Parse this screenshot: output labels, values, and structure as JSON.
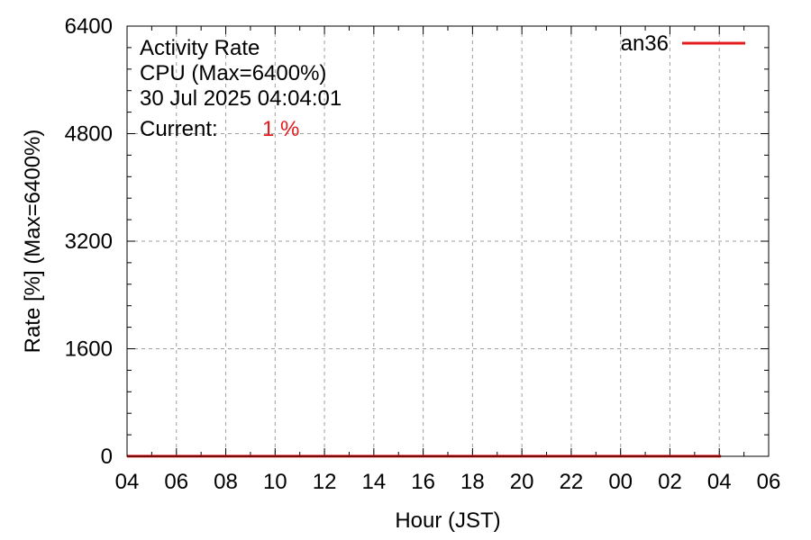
{
  "chart_data": {
    "type": "line",
    "title": "Activity Rate",
    "subtitle": "CPU (Max=6400%)",
    "timestamp": "30 Jul 2025 04:04:01",
    "current_label": "Current:",
    "current_value": "1 %",
    "xlabel": "Hour (JST)",
    "ylabel": "Rate [%]  (Max=6400%)",
    "x_ticks": [
      "04",
      "06",
      "08",
      "10",
      "12",
      "14",
      "16",
      "18",
      "20",
      "22",
      "00",
      "02",
      "04",
      "06"
    ],
    "y_ticks": [
      0,
      1600,
      3200,
      4800,
      6400
    ],
    "xlim_hours": [
      0,
      26
    ],
    "ylim": [
      0,
      6400
    ],
    "grid": true,
    "legend": "top-right",
    "series": [
      {
        "name": "an36",
        "color": "#e41a1c",
        "x_hours": [
          0,
          24.07
        ],
        "values": [
          1,
          1
        ]
      }
    ]
  }
}
